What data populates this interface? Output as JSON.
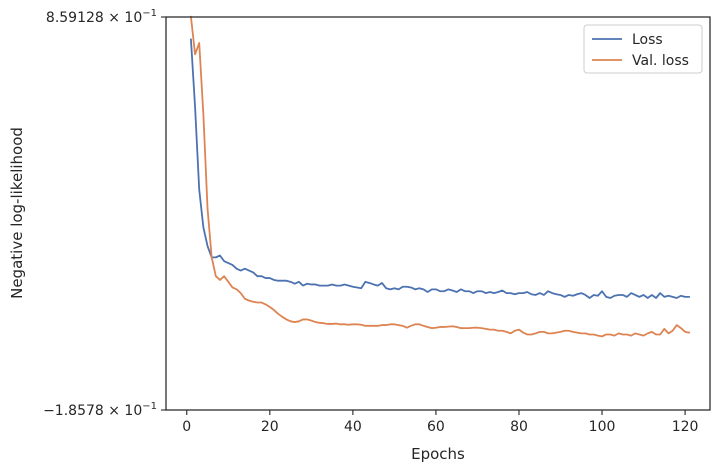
{
  "chart_data": {
    "type": "line",
    "xlabel": "Epochs",
    "ylabel": "Negative log-likelihood",
    "xlim": [
      -5,
      126
    ],
    "ylim": [
      -0.18578,
      0.859128
    ],
    "x_ticks": [
      0,
      20,
      40,
      60,
      80,
      100,
      120
    ],
    "x_tick_labels": [
      "0",
      "20",
      "40",
      "60",
      "80",
      "100",
      "120"
    ],
    "y_tick_labels": {
      "top": {
        "mantissa": "8.59128",
        "base": "10",
        "exp": "−1"
      },
      "bottom": {
        "mantissa": "−1.8578",
        "base": "10",
        "exp": "−1"
      }
    },
    "legend_position": "upper right",
    "grid": false,
    "series": [
      {
        "name": "Loss",
        "color": "#4c72b0",
        "x": [
          1,
          2,
          3,
          4,
          5,
          6,
          7,
          8,
          9,
          10,
          11,
          12,
          13,
          14,
          15,
          16,
          17,
          18,
          19,
          20,
          21,
          22,
          23,
          24,
          25,
          26,
          27,
          28,
          29,
          30,
          31,
          32,
          33,
          34,
          35,
          36,
          37,
          38,
          39,
          40,
          41,
          42,
          43,
          44,
          45,
          46,
          47,
          48,
          49,
          50,
          51,
          52,
          53,
          54,
          55,
          56,
          57,
          58,
          59,
          60,
          61,
          62,
          63,
          64,
          65,
          66,
          67,
          68,
          69,
          70,
          71,
          72,
          73,
          74,
          75,
          76,
          77,
          78,
          79,
          80,
          81,
          82,
          83,
          84,
          85,
          86,
          87,
          88,
          89,
          90,
          91,
          92,
          93,
          94,
          95,
          96,
          97,
          98,
          99,
          100,
          101,
          102,
          103,
          104,
          105,
          106,
          107,
          108,
          109,
          110,
          111,
          112,
          113,
          114,
          115,
          116,
          117,
          118,
          119,
          120,
          121
        ],
        "values": [
          0.8,
          0.62,
          0.4,
          0.3,
          0.25,
          0.22,
          0.22,
          0.225,
          0.21,
          0.205,
          0.2,
          0.19,
          0.185,
          0.19,
          0.185,
          0.18,
          0.17,
          0.17,
          0.165,
          0.165,
          0.16,
          0.158,
          0.158,
          0.158,
          0.155,
          0.15,
          0.155,
          0.145,
          0.15,
          0.148,
          0.148,
          0.145,
          0.145,
          0.145,
          0.148,
          0.145,
          0.145,
          0.148,
          0.145,
          0.142,
          0.14,
          0.138,
          0.155,
          0.152,
          0.148,
          0.145,
          0.152,
          0.138,
          0.135,
          0.138,
          0.135,
          0.142,
          0.142,
          0.14,
          0.135,
          0.138,
          0.135,
          0.128,
          0.135,
          0.135,
          0.13,
          0.13,
          0.135,
          0.132,
          0.128,
          0.135,
          0.13,
          0.13,
          0.125,
          0.13,
          0.13,
          0.125,
          0.128,
          0.125,
          0.128,
          0.132,
          0.125,
          0.125,
          0.122,
          0.125,
          0.125,
          0.128,
          0.122,
          0.12,
          0.125,
          0.12,
          0.13,
          0.125,
          0.122,
          0.12,
          0.115,
          0.12,
          0.118,
          0.122,
          0.125,
          0.12,
          0.112,
          0.12,
          0.118,
          0.13,
          0.115,
          0.112,
          0.118,
          0.12,
          0.12,
          0.115,
          0.125,
          0.12,
          0.115,
          0.12,
          0.112,
          0.12,
          0.112,
          0.125,
          0.115,
          0.118,
          0.115,
          0.112,
          0.118,
          0.115,
          0.115
        ]
      },
      {
        "name": "Val. loss",
        "color": "#dd8452",
        "x": [
          1,
          2,
          3,
          4,
          5,
          6,
          7,
          8,
          9,
          10,
          11,
          12,
          13,
          14,
          15,
          16,
          17,
          18,
          19,
          20,
          21,
          22,
          23,
          24,
          25,
          26,
          27,
          28,
          29,
          30,
          31,
          32,
          33,
          34,
          35,
          36,
          37,
          38,
          39,
          40,
          41,
          42,
          43,
          44,
          45,
          46,
          47,
          48,
          49,
          50,
          51,
          52,
          53,
          54,
          55,
          56,
          57,
          58,
          59,
          60,
          61,
          62,
          63,
          64,
          65,
          66,
          67,
          68,
          69,
          70,
          71,
          72,
          73,
          74,
          75,
          76,
          77,
          78,
          79,
          80,
          81,
          82,
          83,
          84,
          85,
          86,
          87,
          88,
          89,
          90,
          91,
          92,
          93,
          94,
          95,
          96,
          97,
          98,
          99,
          100,
          101,
          102,
          103,
          104,
          105,
          106,
          107,
          108,
          109,
          110,
          111,
          112,
          113,
          114,
          115,
          116,
          117,
          118,
          119,
          120,
          121
        ],
        "values": [
          0.86,
          0.76,
          0.79,
          0.6,
          0.35,
          0.22,
          0.17,
          0.16,
          0.17,
          0.155,
          0.14,
          0.135,
          0.125,
          0.11,
          0.105,
          0.102,
          0.1,
          0.1,
          0.095,
          0.088,
          0.08,
          0.07,
          0.062,
          0.055,
          0.05,
          0.048,
          0.05,
          0.055,
          0.055,
          0.052,
          0.048,
          0.046,
          0.045,
          0.043,
          0.043,
          0.044,
          0.042,
          0.042,
          0.041,
          0.042,
          0.042,
          0.041,
          0.038,
          0.038,
          0.038,
          0.038,
          0.04,
          0.04,
          0.042,
          0.042,
          0.04,
          0.038,
          0.033,
          0.038,
          0.042,
          0.042,
          0.038,
          0.035,
          0.032,
          0.033,
          0.035,
          0.035,
          0.036,
          0.037,
          0.035,
          0.032,
          0.032,
          0.032,
          0.033,
          0.033,
          0.032,
          0.03,
          0.028,
          0.028,
          0.025,
          0.025,
          0.022,
          0.018,
          0.025,
          0.028,
          0.02,
          0.015,
          0.015,
          0.018,
          0.022,
          0.022,
          0.018,
          0.018,
          0.02,
          0.022,
          0.025,
          0.025,
          0.022,
          0.02,
          0.018,
          0.018,
          0.015,
          0.015,
          0.012,
          0.01,
          0.015,
          0.015,
          0.012,
          0.018,
          0.015,
          0.015,
          0.012,
          0.018,
          0.015,
          0.012,
          0.018,
          0.022,
          0.015,
          0.015,
          0.03,
          0.018,
          0.025,
          0.04,
          0.032,
          0.022,
          0.02
        ]
      }
    ]
  }
}
